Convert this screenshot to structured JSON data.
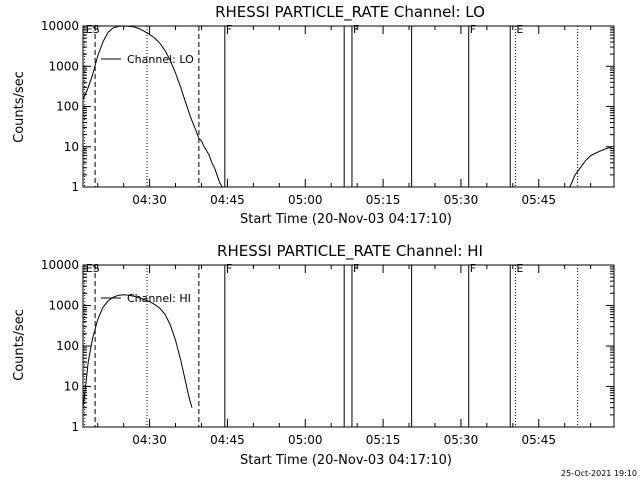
{
  "footer": {
    "timestamp": "25-Oct-2021 19:10"
  },
  "chart_data": [
    {
      "type": "line",
      "title": "RHESSI PARTICLE_RATE Channel: LO",
      "xlabel": "Start Time (20-Nov-03 04:17:10)",
      "ylabel": "Counts/sec",
      "yscale": "log",
      "xlim": [
        "04:17:10",
        "05:59:30"
      ],
      "ylim": [
        1,
        10000
      ],
      "x_ticks": [
        "04:30",
        "04:45",
        "05:00",
        "05:15",
        "05:30",
        "05:45"
      ],
      "y_ticks": [
        "1",
        "10",
        "100",
        "1000",
        "10000"
      ],
      "legend": "Channel: LO",
      "series": [
        {
          "name": "Channel: LO",
          "segments": [
            [
              [
                "04:17:10",
                150
              ],
              [
                "04:18:00",
                260
              ],
              [
                "04:19:00",
                600
              ],
              [
                "04:20:00",
                1800
              ],
              [
                "04:21:00",
                4000
              ],
              [
                "04:22:00",
                7000
              ],
              [
                "04:23:00",
                9000
              ],
              [
                "04:24:00",
                9800
              ],
              [
                "04:25:00",
                10000
              ],
              [
                "04:26:00",
                9900
              ],
              [
                "04:27:00",
                9500
              ],
              [
                "04:28:00",
                8600
              ],
              [
                "04:29:00",
                7400
              ],
              [
                "04:30:00",
                6200
              ],
              [
                "04:31:00",
                5000
              ],
              [
                "04:32:00",
                3700
              ],
              [
                "04:33:00",
                2400
              ],
              [
                "04:34:00",
                1400
              ],
              [
                "04:35:00",
                680
              ],
              [
                "04:36:00",
                300
              ],
              [
                "04:37:00",
                120
              ],
              [
                "04:38:00",
                50
              ],
              [
                "04:39:00",
                24
              ],
              [
                "04:39:30",
                16
              ],
              [
                "04:40:00",
                14
              ],
              [
                "04:40:30",
                10
              ],
              [
                "04:41:00",
                8
              ],
              [
                "04:41:30",
                6
              ],
              [
                "04:42:00",
                4
              ],
              [
                "04:42:30",
                3
              ],
              [
                "04:43:00",
                2
              ],
              [
                "04:43:30",
                1.3
              ],
              [
                "04:44:00",
                1
              ]
            ],
            [
              [
                "05:51:00",
                1
              ],
              [
                "05:52:00",
                2
              ],
              [
                "05:53:00",
                3
              ],
              [
                "05:54:00",
                4.5
              ],
              [
                "05:55:00",
                6
              ],
              [
                "05:56:00",
                7
              ],
              [
                "05:57:00",
                8
              ],
              [
                "05:58:00",
                9
              ],
              [
                "05:58:40",
                9.5
              ],
              [
                "05:59:10",
                9
              ]
            ]
          ]
        }
      ],
      "markers": [
        {
          "label": "ES",
          "time": "04:17:30",
          "style": "dotted"
        },
        {
          "label": "",
          "time": "04:19:30",
          "style": "dashed"
        },
        {
          "label": "",
          "time": "04:29:30",
          "style": "dotted"
        },
        {
          "label": "",
          "time": "04:39:30",
          "style": "dashed"
        },
        {
          "label": "F",
          "time": "04:44:30",
          "style": "solid"
        },
        {
          "label": "",
          "time": "05:07:30",
          "style": "solid"
        },
        {
          "label": "F",
          "time": "05:09:00",
          "style": "solid"
        },
        {
          "label": "",
          "time": "05:20:30",
          "style": "solid"
        },
        {
          "label": "F",
          "time": "05:31:30",
          "style": "solid"
        },
        {
          "label": "",
          "time": "05:39:30",
          "style": "solid"
        },
        {
          "label": "E",
          "time": "05:40:30",
          "style": "dotted"
        },
        {
          "label": "",
          "time": "05:52:30",
          "style": "dotted"
        }
      ]
    },
    {
      "type": "line",
      "title": "RHESSI PARTICLE_RATE Channel: HI",
      "xlabel": "Start Time (20-Nov-03 04:17:10)",
      "ylabel": "Counts/sec",
      "yscale": "log",
      "xlim": [
        "04:17:10",
        "05:59:30"
      ],
      "ylim": [
        1,
        10000
      ],
      "x_ticks": [
        "04:30",
        "04:45",
        "05:00",
        "05:15",
        "05:30",
        "05:45"
      ],
      "y_ticks": [
        "1",
        "10",
        "100",
        "1000",
        "10000"
      ],
      "legend": "Channel: HI",
      "series": [
        {
          "name": "Channel: HI",
          "segments": [
            [
              [
                "04:17:10",
                3
              ],
              [
                "04:17:40",
                10
              ],
              [
                "04:18:10",
                40
              ],
              [
                "04:19:00",
                150
              ],
              [
                "04:20:00",
                450
              ],
              [
                "04:21:00",
                900
              ],
              [
                "04:22:00",
                1300
              ],
              [
                "04:23:00",
                1600
              ],
              [
                "04:24:00",
                1800
              ],
              [
                "04:25:00",
                1850
              ],
              [
                "04:26:00",
                1800
              ],
              [
                "04:27:00",
                1700
              ],
              [
                "04:28:00",
                1550
              ],
              [
                "04:29:00",
                1400
              ],
              [
                "04:30:00",
                1250
              ],
              [
                "04:31:00",
                1050
              ],
              [
                "04:32:00",
                850
              ],
              [
                "04:33:00",
                600
              ],
              [
                "04:34:00",
                330
              ],
              [
                "04:35:00",
                140
              ],
              [
                "04:36:00",
                45
              ],
              [
                "04:37:00",
                12
              ],
              [
                "04:37:40",
                5
              ],
              [
                "04:38:10",
                3
              ]
            ]
          ]
        }
      ],
      "markers": [
        {
          "label": "ES",
          "time": "04:17:30",
          "style": "dotted"
        },
        {
          "label": "",
          "time": "04:19:30",
          "style": "dashed"
        },
        {
          "label": "",
          "time": "04:29:30",
          "style": "dotted"
        },
        {
          "label": "",
          "time": "04:39:30",
          "style": "dashed"
        },
        {
          "label": "F",
          "time": "04:44:30",
          "style": "solid"
        },
        {
          "label": "",
          "time": "05:07:30",
          "style": "solid"
        },
        {
          "label": "F",
          "time": "05:09:00",
          "style": "solid"
        },
        {
          "label": "",
          "time": "05:20:30",
          "style": "solid"
        },
        {
          "label": "F",
          "time": "05:31:30",
          "style": "solid"
        },
        {
          "label": "",
          "time": "05:39:30",
          "style": "solid"
        },
        {
          "label": "E",
          "time": "05:40:30",
          "style": "dotted"
        },
        {
          "label": "",
          "time": "05:52:30",
          "style": "dotted"
        }
      ]
    }
  ]
}
